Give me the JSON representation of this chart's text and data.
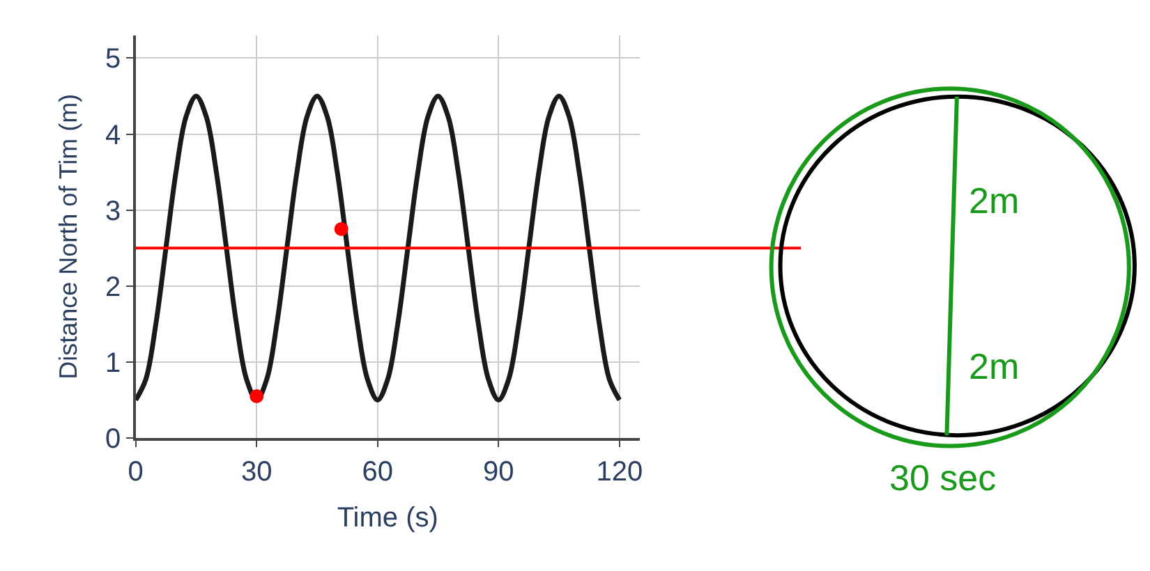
{
  "chart_data": {
    "type": "line",
    "xlabel": "Time (s)",
    "ylabel": "Distance North of Tim (m)",
    "xlim": [
      0,
      125
    ],
    "ylim": [
      0,
      5.3
    ],
    "xticks": [
      0,
      30,
      60,
      90,
      120
    ],
    "yticks": [
      0,
      1,
      2,
      3,
      4,
      5
    ],
    "grid": true,
    "series": [
      {
        "color": "#1a1a1a",
        "marker": "none",
        "line_style": "solid",
        "x": [
          0,
          2.5,
          5,
          7.5,
          10,
          12.5,
          15,
          17.5,
          20,
          22.5,
          25,
          27.5,
          30,
          32.5,
          35,
          37.5,
          40,
          42.5,
          45,
          47.5,
          50,
          52.5,
          55,
          57.5,
          60,
          62.5,
          65,
          67.5,
          70,
          72.5,
          75,
          77.5,
          80,
          82.5,
          85,
          87.5,
          90,
          92.5,
          95,
          97.5,
          100,
          102.5,
          105,
          107.5,
          110,
          112.5,
          115,
          117.5,
          120
        ],
        "values": [
          0.5,
          0.77,
          1.5,
          2.5,
          3.5,
          4.23,
          4.5,
          4.23,
          3.5,
          2.5,
          1.5,
          0.77,
          0.5,
          0.77,
          1.5,
          2.5,
          3.5,
          4.23,
          4.5,
          4.23,
          3.5,
          2.5,
          1.5,
          0.77,
          0.5,
          0.77,
          1.5,
          2.5,
          3.5,
          4.23,
          4.5,
          4.23,
          3.5,
          2.5,
          1.5,
          0.77,
          0.5,
          0.77,
          1.5,
          2.5,
          3.5,
          4.23,
          4.5,
          4.23,
          3.5,
          2.5,
          1.5,
          0.77,
          0.5
        ]
      },
      {
        "type": "scatter",
        "color": "#ff0000",
        "marker": "circle",
        "x": [
          30,
          51
        ],
        "values": [
          0.55,
          2.75
        ]
      }
    ],
    "ref_lines": [
      {
        "axis": "y",
        "value": 2.5,
        "color": "#ff0000",
        "line_style": "solid"
      }
    ],
    "annotations": [
      "2m",
      "2m",
      "30 sec"
    ]
  }
}
